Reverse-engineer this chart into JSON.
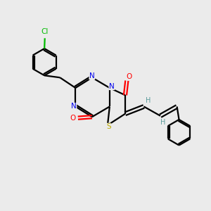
{
  "bg_color": "#ebebeb",
  "atom_colors": {
    "C": "#000000",
    "N": "#0000ee",
    "O": "#ff0000",
    "S": "#bbaa00",
    "Cl": "#00bb00",
    "H": "#5a9a9a"
  },
  "bond_color": "#000000",
  "figsize": [
    3.0,
    3.0
  ],
  "dpi": 100
}
